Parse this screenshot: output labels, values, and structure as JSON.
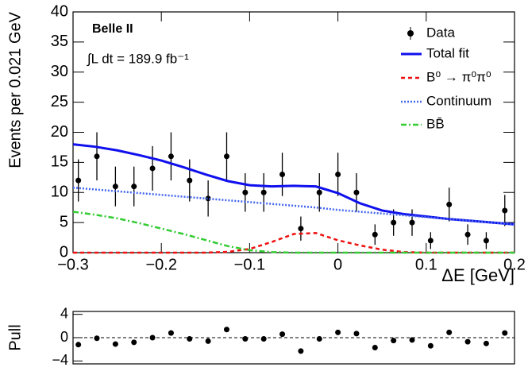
{
  "chart_data": [
    {
      "type": "fit",
      "annotations": [
        "Belle II",
        "∫L dt = 189.9 fb⁻¹"
      ],
      "x_label": "ΔE [GeV]",
      "y_label": "Events per 0.021 GeV",
      "xlim": [
        -0.3,
        0.2
      ],
      "ylim": [
        0,
        40
      ],
      "xticks": [
        {
          "value": -0.3,
          "label": "−0.3"
        },
        {
          "value": -0.2,
          "label": "−0.2"
        },
        {
          "value": -0.1,
          "label": "−0.1"
        },
        0,
        0.1,
        0.2
      ],
      "yticks": [
        0,
        5,
        10,
        15,
        20,
        25,
        30,
        35,
        40
      ],
      "legend": "upper right",
      "series": [
        {
          "name": "Data",
          "kind": "points",
          "color": "#000000",
          "x": [
            -0.294,
            -0.273,
            -0.252,
            -0.231,
            -0.21,
            -0.189,
            -0.168,
            -0.147,
            -0.126,
            -0.105,
            -0.084,
            -0.063,
            -0.042,
            -0.021,
            0,
            0.021,
            0.042,
            0.063,
            0.084,
            0.105,
            0.126,
            0.147,
            0.168,
            0.189
          ],
          "values": [
            12,
            16,
            11,
            11,
            14,
            16,
            12,
            9,
            16,
            10,
            10,
            13,
            4,
            10,
            13,
            10,
            3,
            5,
            5,
            2,
            8,
            3,
            2,
            7
          ],
          "errors": [
            3.5,
            4,
            3.3,
            3.3,
            3.7,
            4,
            3.5,
            3,
            4,
            3.2,
            3.2,
            3.6,
            2,
            3.2,
            3.6,
            3.2,
            1.7,
            2.2,
            2.2,
            1.4,
            2.8,
            1.7,
            1.4,
            2.6
          ]
        },
        {
          "name": "Total fit",
          "kind": "line",
          "style": "solid",
          "color": "#1010ee",
          "x": [
            -0.3,
            -0.275,
            -0.25,
            -0.225,
            -0.2,
            -0.175,
            -0.15,
            -0.125,
            -0.1,
            -0.075,
            -0.05,
            -0.025,
            0,
            0.025,
            0.05,
            0.075,
            0.1,
            0.125,
            0.15,
            0.175,
            0.2
          ],
          "values": [
            18,
            17.6,
            17.0,
            16.2,
            15.3,
            14.2,
            13.0,
            11.9,
            11.2,
            11.0,
            11.1,
            11.0,
            9.9,
            8.2,
            7.0,
            6.4,
            6.0,
            5.6,
            5.3,
            5.0,
            4.7
          ]
        },
        {
          "name": "B⁰ → π⁰π⁰",
          "kind": "line",
          "style": "dashed",
          "color": "#ee1111",
          "x": [
            -0.3,
            -0.275,
            -0.25,
            -0.225,
            -0.2,
            -0.175,
            -0.15,
            -0.125,
            -0.1,
            -0.075,
            -0.05,
            -0.025,
            0,
            0.025,
            0.05,
            0.075,
            0.1,
            0.125,
            0.15,
            0.175,
            0.2
          ],
          "values": [
            0,
            0,
            0,
            0,
            0,
            0,
            0,
            0.13,
            0.61,
            1.77,
            3.1,
            3.26,
            2.06,
            1.2,
            0.5,
            0.1,
            0,
            0,
            0,
            0,
            0
          ]
        },
        {
          "name": "Continuum",
          "kind": "line",
          "style": "dotted",
          "color": "#4466ee",
          "x": [
            -0.3,
            -0.275,
            -0.25,
            -0.225,
            -0.2,
            -0.175,
            -0.15,
            -0.125,
            -0.1,
            -0.075,
            -0.05,
            -0.025,
            0,
            0.025,
            0.05,
            0.075,
            0.1,
            0.125,
            0.15,
            0.175,
            0.2
          ],
          "values": [
            10.8,
            10.5,
            10.2,
            9.9,
            9.6,
            9.3,
            9.0,
            8.7,
            8.4,
            8.1,
            7.8,
            7.5,
            7.1,
            6.8,
            6.5,
            6.2,
            5.9,
            5.6,
            5.3,
            5.0,
            4.7
          ]
        },
        {
          "name": "BB̄",
          "kind": "line",
          "style": "dashdot",
          "color": "#33cc33",
          "x": [
            -0.3,
            -0.275,
            -0.25,
            -0.225,
            -0.2,
            -0.175,
            -0.15,
            -0.125,
            -0.1,
            -0.075,
            -0.05,
            -0.025,
            0,
            0.025,
            0.05,
            0.075,
            0.1,
            0.125,
            0.15,
            0.175,
            0.2
          ],
          "values": [
            6.8,
            6.3,
            5.7,
            4.9,
            4.0,
            3.1,
            2.1,
            1.1,
            0.4,
            0.1,
            0,
            0,
            0,
            0,
            0,
            0,
            0,
            0,
            0,
            0,
            0
          ]
        }
      ]
    },
    {
      "type": "pull",
      "y_label": "Pull",
      "xlim": [
        -0.3,
        0.2
      ],
      "ylim": [
        -4.5,
        4.5
      ],
      "yticks": [
        {
          "value": -4,
          "label": "−4"
        },
        0,
        4
      ],
      "reference": 0,
      "color": "#000000",
      "x": [
        -0.294,
        -0.273,
        -0.252,
        -0.231,
        -0.21,
        -0.189,
        -0.168,
        -0.147,
        -0.126,
        -0.105,
        -0.084,
        -0.063,
        -0.042,
        -0.021,
        0,
        0.021,
        0.042,
        0.063,
        0.084,
        0.105,
        0.126,
        0.147,
        0.168,
        0.189
      ],
      "values": [
        -1.2,
        -0.1,
        -1.1,
        -0.8,
        0,
        0.8,
        -0.2,
        -0.6,
        1.4,
        -0.2,
        -0.2,
        0.6,
        -2.3,
        -0.2,
        0.9,
        0.7,
        -1.7,
        -0.5,
        -0.4,
        -1.4,
        0.9,
        -0.7,
        -1.0,
        0.8
      ]
    }
  ]
}
